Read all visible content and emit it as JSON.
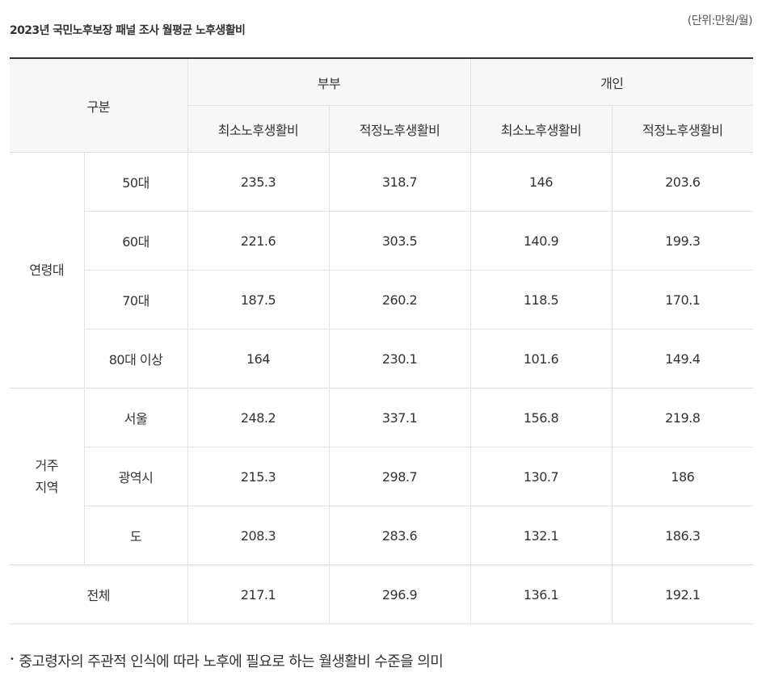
{
  "title": "2023년 국민노후보장 패널 조사 월평균 노후생활비",
  "unit": "(단위:만원/월)",
  "table": {
    "header_corner": "구분",
    "groups": [
      "부부",
      "개인"
    ],
    "subheaders": [
      "최소노후생활비",
      "적정노후생활비",
      "최소노후생활비",
      "적정노후생활비"
    ],
    "age_group": {
      "label": "연령대",
      "rows": [
        {
          "label": "50대",
          "values": [
            "235.3",
            "318.7",
            "146",
            "203.6"
          ]
        },
        {
          "label": "60대",
          "values": [
            "221.6",
            "303.5",
            "140.9",
            "199.3"
          ]
        },
        {
          "label": "70대",
          "values": [
            "187.5",
            "260.2",
            "118.5",
            "170.1"
          ]
        },
        {
          "label": "80대 이상",
          "values": [
            "164",
            "230.1",
            "101.6",
            "149.4"
          ]
        }
      ]
    },
    "region_group": {
      "label_line1": "거주",
      "label_line2": "지역",
      "rows": [
        {
          "label": "서울",
          "values": [
            "248.2",
            "337.1",
            "156.8",
            "219.8"
          ]
        },
        {
          "label": "광역시",
          "values": [
            "215.3",
            "298.7",
            "130.7",
            "186"
          ]
        },
        {
          "label": "도",
          "values": [
            "208.3",
            "283.6",
            "132.1",
            "186.3"
          ]
        }
      ]
    },
    "total": {
      "label": "전체",
      "values": [
        "217.1",
        "296.9",
        "136.1",
        "192.1"
      ]
    }
  },
  "note": {
    "bullet": "•",
    "text": "중고령자의 주관적 인식에 따라 노후에 필요로 하는 월생활비 수준을 의미"
  }
}
